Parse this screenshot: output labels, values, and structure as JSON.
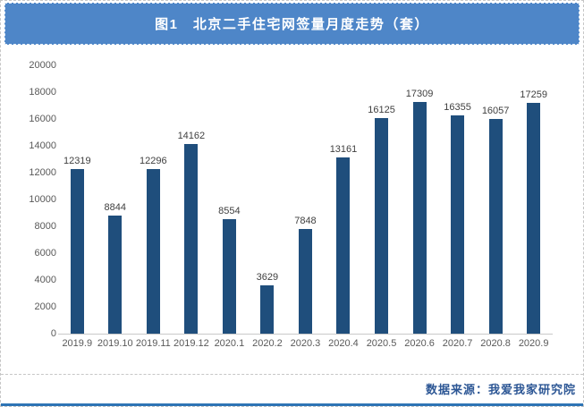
{
  "header": {
    "title": "图1　北京二手住宅网签量月度走势（套）"
  },
  "footer": {
    "source": "数据来源：我爱我家研究院"
  },
  "colors": {
    "header_bg": "#4e86c8",
    "bar": "#1f4e7c",
    "footer_text": "#2d5795",
    "bottom_line": "#2e74b5",
    "axis_text": "#595959",
    "data_label_text": "#3f3f3f"
  },
  "chart_data": {
    "type": "bar",
    "title": "图1　北京二手住宅网签量月度走势（套）",
    "categories": [
      "2019.9",
      "2019.10",
      "2019.11",
      "2019.12",
      "2020.1",
      "2020.2",
      "2020.3",
      "2020.4",
      "2020.5",
      "2020.6",
      "2020.7",
      "2020.8",
      "2020.9"
    ],
    "values": [
      12319,
      8844,
      12296,
      14162,
      8554,
      3629,
      7848,
      13161,
      16125,
      17309,
      16355,
      16057,
      17259
    ],
    "xlabel": "",
    "ylabel": "",
    "ylim": [
      0,
      20000
    ],
    "yticks": [
      20000,
      18000,
      16000,
      14000,
      12000,
      10000,
      8000,
      6000,
      4000,
      2000,
      0
    ],
    "grid": false,
    "legend_position": "none",
    "data_labels": true
  }
}
